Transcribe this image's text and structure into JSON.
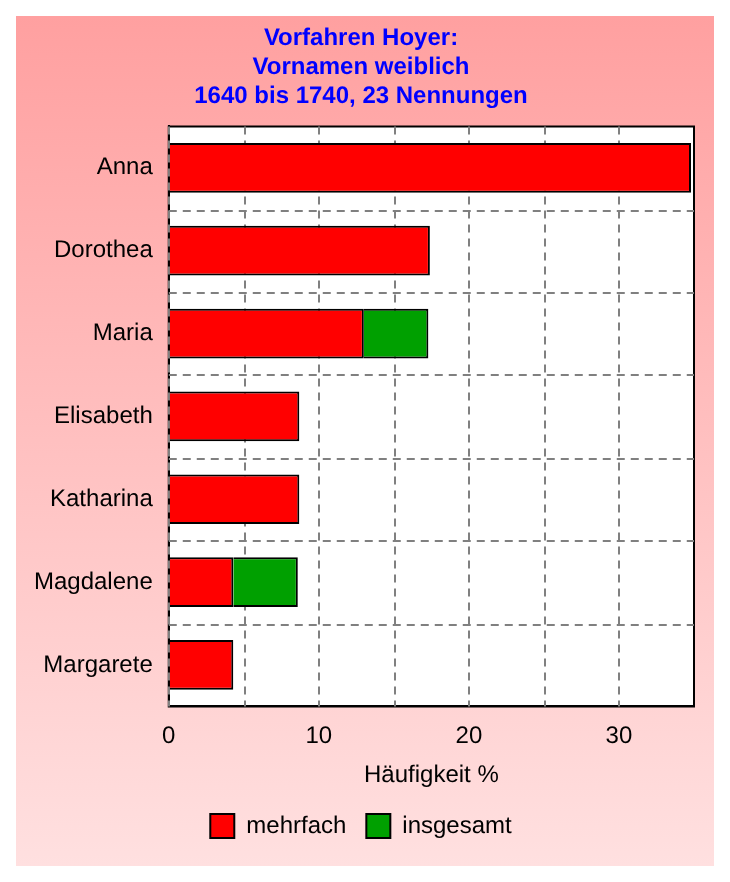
{
  "chart_data": {
    "type": "bar",
    "orientation": "horizontal",
    "stacked": true,
    "title": "Vorfahren Hoyer:\nVornamen weiblich\n1640 bis 1740, 23 Nennungen",
    "xlabel": "Häufigkeit %",
    "categories": [
      "Anna",
      "Dorothea",
      "Maria",
      "Elisabeth",
      "Katharina",
      "Magdalene",
      "Margarete"
    ],
    "series": [
      {
        "name": "mehrfach",
        "color": "#ff0000",
        "values": [
          34.8,
          17.4,
          13.0,
          8.7,
          8.7,
          4.3,
          4.3
        ]
      },
      {
        "name": "insgesamt",
        "color": "#00a000",
        "values": [
          0,
          0,
          4.3,
          0,
          0,
          4.3,
          0
        ]
      }
    ],
    "xlim": [
      0,
      35
    ],
    "xticks": [
      0,
      {
        "value": 5,
        "label": null
      },
      10,
      {
        "value": 15,
        "label": null
      },
      20,
      {
        "value": 25,
        "label": null
      },
      30
    ],
    "grid": true,
    "line_style": "dashed",
    "legend": "bottom"
  }
}
